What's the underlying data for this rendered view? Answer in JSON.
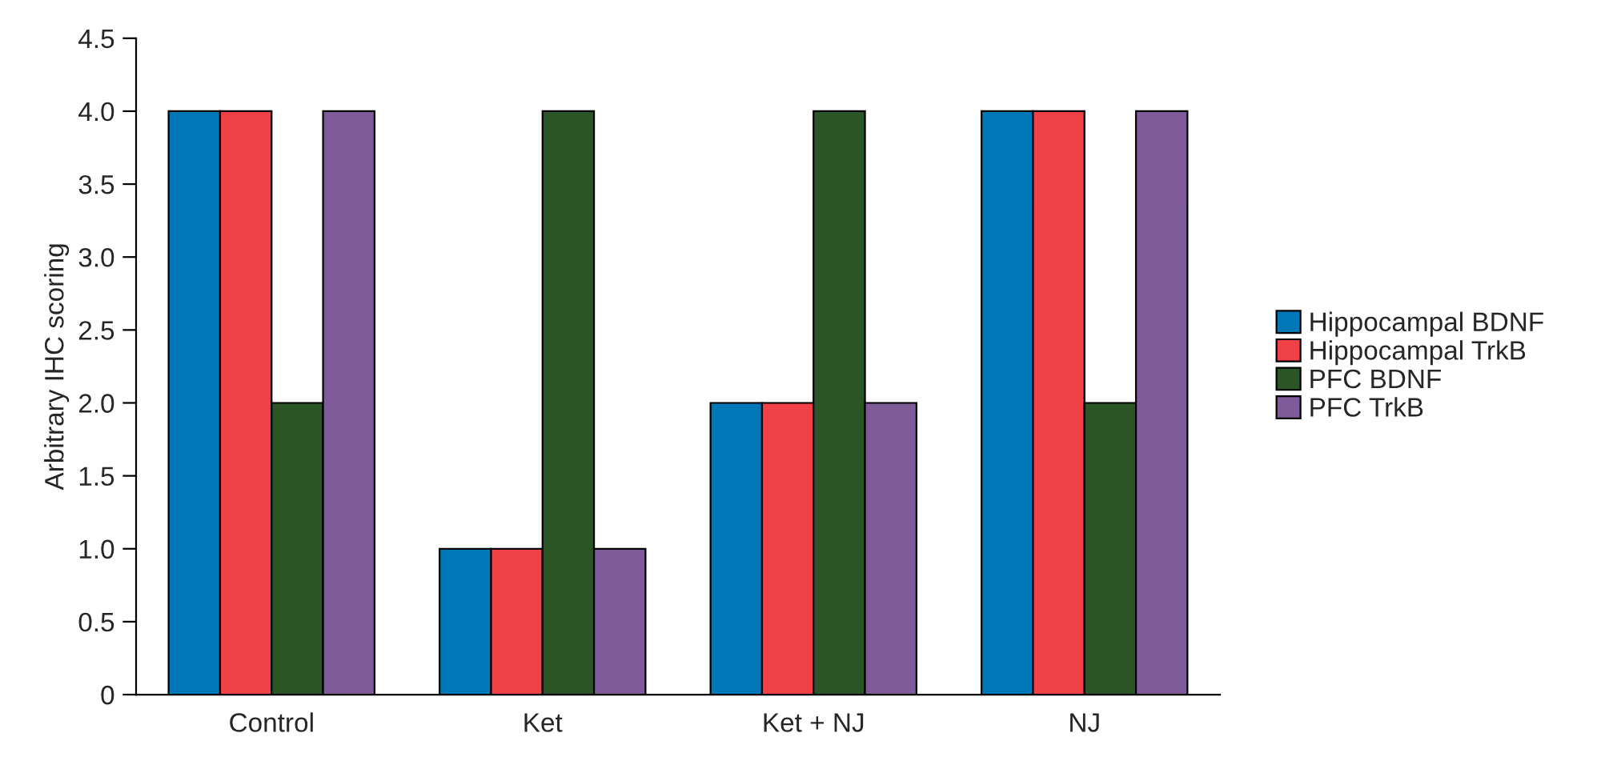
{
  "chart_data": {
    "type": "bar",
    "ylabel": "Arbitrary IHC scoring",
    "categories": [
      "Control",
      "Ket",
      "Ket + NJ",
      "NJ"
    ],
    "series": [
      {
        "name": "Hippocampal BDNF",
        "color": "#0077b6",
        "values": [
          4,
          1,
          2,
          4
        ]
      },
      {
        "name": "Hippocampal TrkB",
        "color": "#ef4146",
        "values": [
          4,
          1,
          2,
          4
        ]
      },
      {
        "name": "PFC BDNF",
        "color": "#2b5527",
        "values": [
          2,
          4,
          4,
          2
        ]
      },
      {
        "name": "PFC TrkB",
        "color": "#7f5b99",
        "values": [
          4,
          1,
          2,
          4
        ]
      }
    ],
    "ylim": [
      0,
      4.5
    ],
    "yticks": [
      0,
      {
        "value": 0.5,
        "label": "0.5"
      },
      {
        "value": 1,
        "label": "1.0"
      },
      {
        "value": 1.5,
        "label": "1.5"
      },
      {
        "value": 2,
        "label": "2.0"
      },
      {
        "value": 2.5,
        "label": "2.5"
      },
      {
        "value": 3,
        "label": "3.0"
      },
      {
        "value": 3.5,
        "label": "3.5"
      },
      {
        "value": 4,
        "label": "4.0"
      },
      {
        "value": 4.5,
        "label": "4.5"
      }
    ],
    "grid": false,
    "legend": "right"
  }
}
